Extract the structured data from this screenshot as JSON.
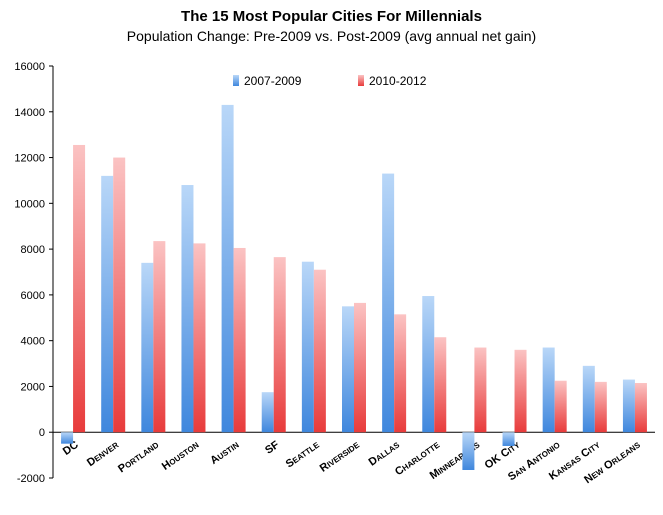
{
  "chart_data": {
    "type": "bar",
    "title": "The 15 Most Popular Cities For Millennials",
    "subtitle": "Population Change: Pre-2009 vs. Post-2009 (avg annual net gain)",
    "xlabel": "",
    "ylabel": "",
    "ylim": [
      -2000,
      16000
    ],
    "yticks": [
      -2000,
      0,
      2000,
      4000,
      6000,
      8000,
      10000,
      12000,
      14000,
      16000
    ],
    "grid": false,
    "legend": "top-center",
    "categories": [
      "DC",
      "Denver",
      "Portland",
      "Houston",
      "Austin",
      "SF",
      "Seattle",
      "Riverside",
      "Dallas",
      "Charlotte",
      "Minneapolis",
      "OK City",
      "San Antonio",
      "Kansas City",
      "New Orleans"
    ],
    "series": [
      {
        "name": "2007-2009",
        "color": "#6aa8ec",
        "values": [
          -500,
          11200,
          7400,
          10800,
          14300,
          1750,
          7450,
          5500,
          11300,
          5950,
          -1650,
          -600,
          3700,
          2900,
          2300
        ]
      },
      {
        "name": "2010-2012",
        "color": "#f07878",
        "values": [
          12550,
          12000,
          8350,
          8250,
          8050,
          7650,
          7100,
          5650,
          5150,
          4150,
          3700,
          3600,
          2250,
          2200,
          2150
        ]
      }
    ]
  }
}
